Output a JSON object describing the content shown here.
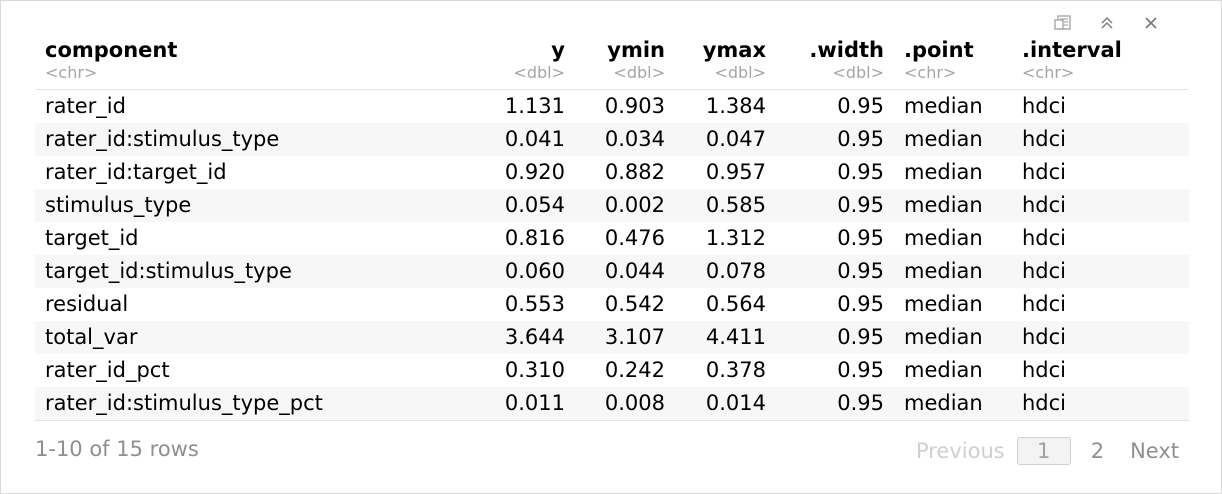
{
  "toolbar": {
    "icons": [
      "export-icon",
      "collapse-up-icon",
      "close-icon"
    ]
  },
  "table": {
    "columns": [
      {
        "name": "component",
        "type": "<chr>"
      },
      {
        "name": "y",
        "type": "<dbl>"
      },
      {
        "name": "ymin",
        "type": "<dbl>"
      },
      {
        "name": "ymax",
        "type": "<dbl>"
      },
      {
        "name": ".width",
        "type": "<dbl>"
      },
      {
        "name": ".point",
        "type": "<chr>"
      },
      {
        "name": ".interval",
        "type": "<chr>"
      }
    ],
    "rows": [
      [
        "rater_id",
        "1.131",
        "0.903",
        "1.384",
        "0.95",
        "median",
        "hdci"
      ],
      [
        "rater_id:stimulus_type",
        "0.041",
        "0.034",
        "0.047",
        "0.95",
        "median",
        "hdci"
      ],
      [
        "rater_id:target_id",
        "0.920",
        "0.882",
        "0.957",
        "0.95",
        "median",
        "hdci"
      ],
      [
        "stimulus_type",
        "0.054",
        "0.002",
        "0.585",
        "0.95",
        "median",
        "hdci"
      ],
      [
        "target_id",
        "0.816",
        "0.476",
        "1.312",
        "0.95",
        "median",
        "hdci"
      ],
      [
        "target_id:stimulus_type",
        "0.060",
        "0.044",
        "0.078",
        "0.95",
        "median",
        "hdci"
      ],
      [
        "residual",
        "0.553",
        "0.542",
        "0.564",
        "0.95",
        "median",
        "hdci"
      ],
      [
        "total_var",
        "3.644",
        "3.107",
        "4.411",
        "0.95",
        "median",
        "hdci"
      ],
      [
        "rater_id_pct",
        "0.310",
        "0.242",
        "0.378",
        "0.95",
        "median",
        "hdci"
      ],
      [
        "rater_id:stimulus_type_pct",
        "0.011",
        "0.008",
        "0.014",
        "0.95",
        "median",
        "hdci"
      ]
    ]
  },
  "footer": {
    "row_info": "1-10 of 15 rows",
    "pagination": {
      "previous": "Previous",
      "current_page": "1",
      "pages": [
        "2"
      ],
      "next": "Next"
    }
  }
}
